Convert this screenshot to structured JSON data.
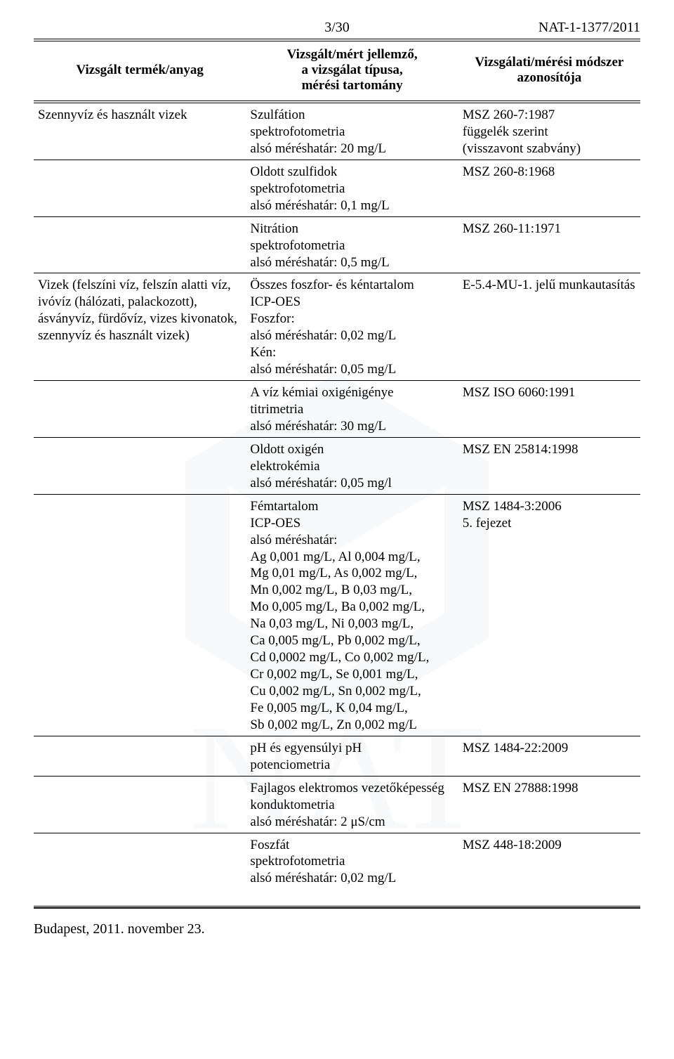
{
  "header": {
    "page_num": "3/30",
    "doc_id": "NAT-1-1377/2011"
  },
  "table_headers": {
    "c1": "Vizsgált termék/anyag",
    "c2_l1": "Vizsgált/mért jellemző,",
    "c2_l2": "a vizsgálat típusa,",
    "c2_l3": "mérési tartomány",
    "c3_l1": "Vizsgálati/mérési módszer",
    "c3_l2": "azonosítója"
  },
  "rows": [
    {
      "c1": [
        "Szennyvíz és használt vizek"
      ],
      "c2": [
        "Szulfátion",
        "spektrofotometria",
        "alsó méréshatár: 20 mg/L"
      ],
      "c3": [
        "MSZ 260-7:1987",
        "függelék szerint",
        "(visszavont szabvány)"
      ]
    },
    {
      "c1": [],
      "c2": [
        "Oldott szulfidok",
        "spektrofotometria",
        "alsó méréshatár: 0,1 mg/L"
      ],
      "c3": [
        "MSZ 260-8:1968"
      ]
    },
    {
      "c1": [],
      "c2": [
        "Nitrátion",
        "spektrofotometria",
        "alsó méréshatár: 0,5 mg/L"
      ],
      "c3": [
        "MSZ 260-11:1971"
      ]
    },
    {
      "c1": [
        "Vizek (felszíni víz, felszín alatti víz,",
        "ivóvíz (hálózati, palackozott),",
        "ásványvíz, fürdővíz, vizes kivonatok,",
        "szennyvíz és használt vizek)"
      ],
      "c2": [
        "Összes foszfor- és kéntartalom",
        "ICP-OES",
        "Foszfor:",
        "alsó méréshatár: 0,02 mg/L",
        "Kén:",
        "alsó méréshatár: 0,05 mg/L"
      ],
      "c3": [
        "E-5.4-MU-1. jelű munkautasítás"
      ]
    },
    {
      "c1": [],
      "c2": [
        "A víz kémiai oxigénigénye",
        "titrimetria",
        "alsó méréshatár: 30 mg/L"
      ],
      "c3": [
        "MSZ ISO 6060:1991"
      ]
    },
    {
      "c1": [],
      "c2": [
        "Oldott oxigén",
        "elektrokémia",
        "alsó méréshatár: 0,05 mg/l"
      ],
      "c3": [
        "MSZ EN 25814:1998"
      ]
    },
    {
      "c1": [],
      "c2": [
        "Fémtartalom",
        "ICP-OES",
        "alsó méréshatár:",
        "Ag 0,001 mg/L, Al 0,004 mg/L,",
        "Mg 0,01 mg/L, As 0,002 mg/L,",
        "Mn 0,002 mg/L, B 0,03 mg/L,",
        "Mo 0,005 mg/L, Ba 0,002 mg/L,",
        "Na 0,03 mg/L, Ni 0,003 mg/L,",
        "Ca 0,005 mg/L, Pb 0,002 mg/L,",
        "Cd 0,0002 mg/L, Co 0,002 mg/L,",
        "Cr 0,002 mg/L, Se 0,001 mg/L,",
        "Cu 0,002 mg/L, Sn 0,002 mg/L,",
        "Fe 0,005 mg/L, K 0,04 mg/L,",
        "Sb 0,002 mg/L, Zn 0,002 mg/L"
      ],
      "c3": [
        "MSZ 1484-3:2006",
        "5. fejezet"
      ]
    },
    {
      "c1": [],
      "c2": [
        "pH és egyensúlyi pH",
        "potenciometria"
      ],
      "c3": [
        "MSZ 1484-22:2009"
      ]
    },
    {
      "c1": [],
      "c2": [
        "Fajlagos elektromos vezetőképesség",
        "konduktometria",
        "alsó méréshatár: 2 μS/cm"
      ],
      "c3": [
        "MSZ EN 27888:1998"
      ]
    },
    {
      "c1": [],
      "c2": [
        "Foszfát",
        "spektrofotometria",
        "alsó méréshatár: 0,02 mg/L"
      ],
      "c3": [
        "MSZ 448-18:2009"
      ]
    }
  ],
  "footer": {
    "text": "Budapest, 2011. november 23."
  }
}
